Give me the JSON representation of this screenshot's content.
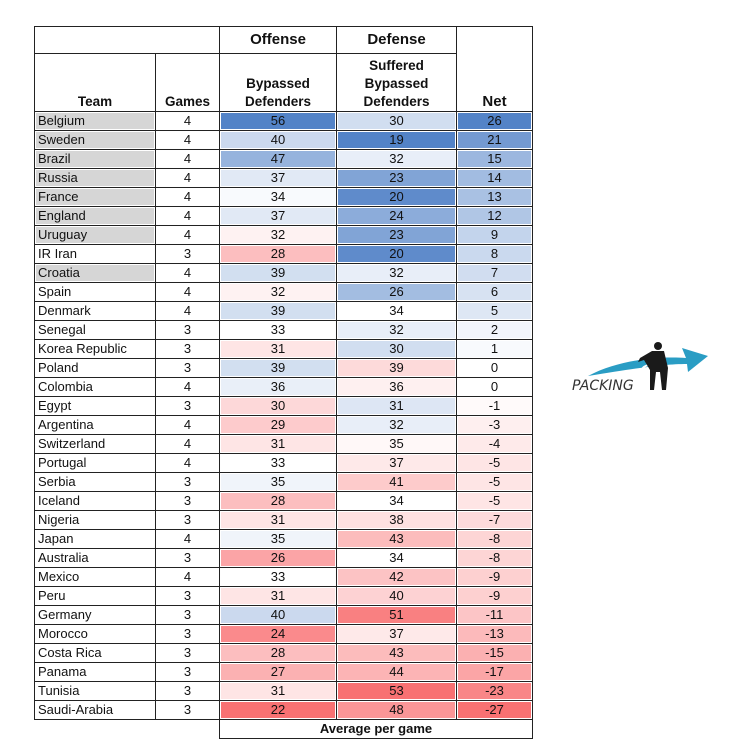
{
  "chart_data": {
    "type": "table",
    "group_headers": {
      "offense": "Offense",
      "defense": "Defense"
    },
    "columns": {
      "team": "Team",
      "games": "Games",
      "offense": "Bypassed Defenders",
      "defense": "Suffered Bypassed Defenders",
      "net": "Net"
    },
    "footer": "Average per game",
    "colors": {
      "good": "#4a7cc4",
      "bad": "#f8696b",
      "neutral": "#ffffff",
      "highlight": "#d6d6d6"
    },
    "rows": [
      {
        "team": "Belgium",
        "games": 4,
        "offense": 56,
        "defense": 30,
        "net": 26,
        "highlighted": true
      },
      {
        "team": "Sweden",
        "games": 4,
        "offense": 40,
        "defense": 19,
        "net": 21,
        "highlighted": true
      },
      {
        "team": "Brazil",
        "games": 4,
        "offense": 47,
        "defense": 32,
        "net": 15,
        "highlighted": true
      },
      {
        "team": "Russia",
        "games": 4,
        "offense": 37,
        "defense": 23,
        "net": 14,
        "highlighted": true
      },
      {
        "team": "France",
        "games": 4,
        "offense": 34,
        "defense": 20,
        "net": 13,
        "highlighted": true
      },
      {
        "team": "England",
        "games": 4,
        "offense": 37,
        "defense": 24,
        "net": 12,
        "highlighted": true
      },
      {
        "team": "Uruguay",
        "games": 4,
        "offense": 32,
        "defense": 23,
        "net": 9,
        "highlighted": true
      },
      {
        "team": "IR Iran",
        "games": 3,
        "offense": 28,
        "defense": 20,
        "net": 8,
        "highlighted": false
      },
      {
        "team": "Croatia",
        "games": 4,
        "offense": 39,
        "defense": 32,
        "net": 7,
        "highlighted": true
      },
      {
        "team": "Spain",
        "games": 4,
        "offense": 32,
        "defense": 26,
        "net": 6,
        "highlighted": false
      },
      {
        "team": "Denmark",
        "games": 4,
        "offense": 39,
        "defense": 34,
        "net": 5,
        "highlighted": false
      },
      {
        "team": "Senegal",
        "games": 3,
        "offense": 33,
        "defense": 32,
        "net": 2,
        "highlighted": false
      },
      {
        "team": "Korea Republic",
        "games": 3,
        "offense": 31,
        "defense": 30,
        "net": 1,
        "highlighted": false
      },
      {
        "team": "Poland",
        "games": 3,
        "offense": 39,
        "defense": 39,
        "net": 0,
        "highlighted": false
      },
      {
        "team": "Colombia",
        "games": 4,
        "offense": 36,
        "defense": 36,
        "net": 0,
        "highlighted": false
      },
      {
        "team": "Egypt",
        "games": 3,
        "offense": 30,
        "defense": 31,
        "net": -1,
        "highlighted": false
      },
      {
        "team": "Argentina",
        "games": 4,
        "offense": 29,
        "defense": 32,
        "net": -3,
        "highlighted": false
      },
      {
        "team": "Switzerland",
        "games": 4,
        "offense": 31,
        "defense": 35,
        "net": -4,
        "highlighted": false
      },
      {
        "team": "Portugal",
        "games": 4,
        "offense": 33,
        "defense": 37,
        "net": -5,
        "highlighted": false
      },
      {
        "team": "Serbia",
        "games": 3,
        "offense": 35,
        "defense": 41,
        "net": -5,
        "highlighted": false
      },
      {
        "team": "Iceland",
        "games": 3,
        "offense": 28,
        "defense": 34,
        "net": -5,
        "highlighted": false
      },
      {
        "team": "Nigeria",
        "games": 3,
        "offense": 31,
        "defense": 38,
        "net": -7,
        "highlighted": false
      },
      {
        "team": "Japan",
        "games": 4,
        "offense": 35,
        "defense": 43,
        "net": -8,
        "highlighted": false
      },
      {
        "team": "Australia",
        "games": 3,
        "offense": 26,
        "defense": 34,
        "net": -8,
        "highlighted": false
      },
      {
        "team": "Mexico",
        "games": 4,
        "offense": 33,
        "defense": 42,
        "net": -9,
        "highlighted": false
      },
      {
        "team": "Peru",
        "games": 3,
        "offense": 31,
        "defense": 40,
        "net": -9,
        "highlighted": false
      },
      {
        "team": "Germany",
        "games": 3,
        "offense": 40,
        "defense": 51,
        "net": -11,
        "highlighted": false
      },
      {
        "team": "Morocco",
        "games": 3,
        "offense": 24,
        "defense": 37,
        "net": -13,
        "highlighted": false
      },
      {
        "team": "Costa Rica",
        "games": 3,
        "offense": 28,
        "defense": 43,
        "net": -15,
        "highlighted": false
      },
      {
        "team": "Panama",
        "games": 3,
        "offense": 27,
        "defense": 44,
        "net": -17,
        "highlighted": false
      },
      {
        "team": "Tunisia",
        "games": 3,
        "offense": 31,
        "defense": 53,
        "net": -23,
        "highlighted": false
      },
      {
        "team": "Saudi-Arabia",
        "games": 3,
        "offense": 22,
        "defense": 48,
        "net": -27,
        "highlighted": false
      }
    ]
  },
  "logo": {
    "text": "PACKING",
    "colors": {
      "arrow": "#2a9dc4",
      "figure": "#1a1a1a"
    }
  }
}
